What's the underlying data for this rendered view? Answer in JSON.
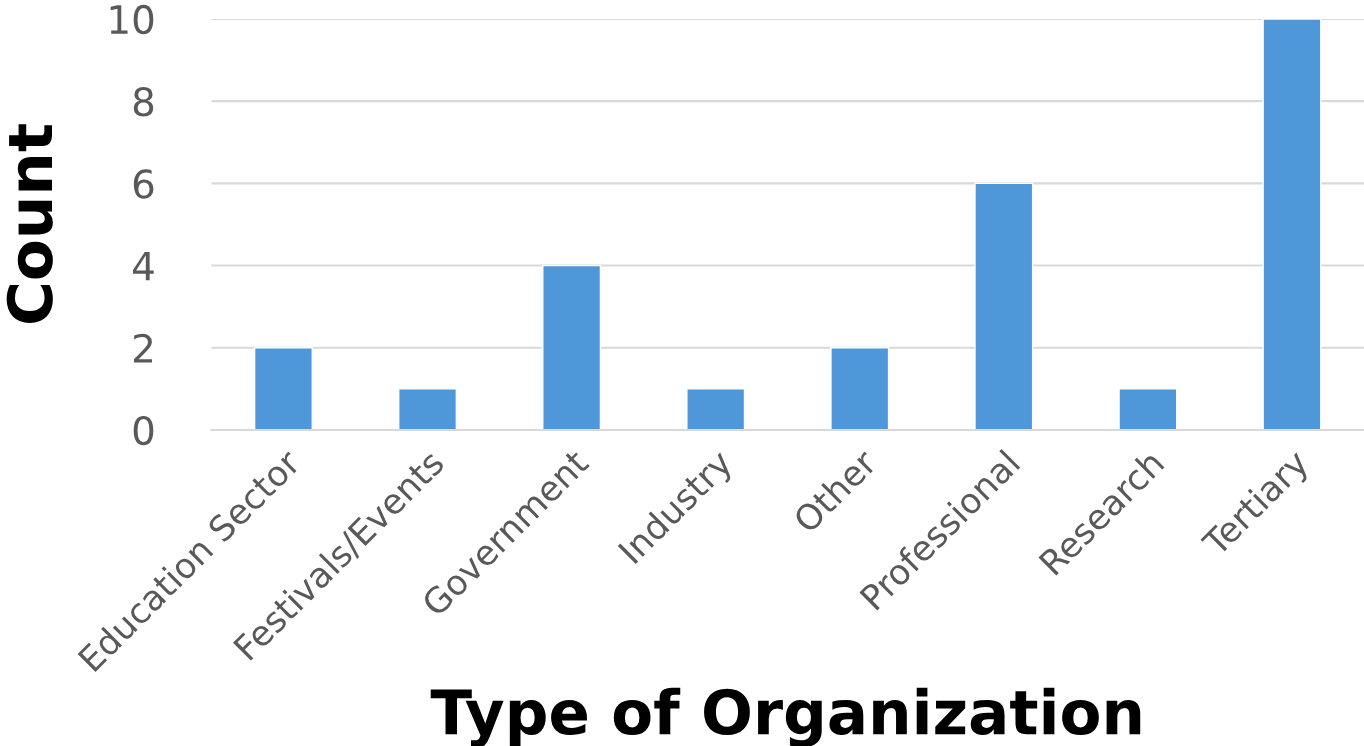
{
  "chart_data": {
    "type": "bar",
    "xlabel": "Type of Organization",
    "ylabel": "Count",
    "categories": [
      "Education Sector",
      "Festivals/Events",
      "Government",
      "Industry",
      "Other",
      "Professional",
      "Research",
      "Tertiary"
    ],
    "values": [
      2,
      1,
      4,
      1,
      2,
      6,
      1,
      10
    ],
    "color": "#4e97d9",
    "ylim": [
      0,
      10
    ],
    "yticks": [
      0,
      2,
      4,
      6,
      8,
      10
    ],
    "grid": "y"
  }
}
